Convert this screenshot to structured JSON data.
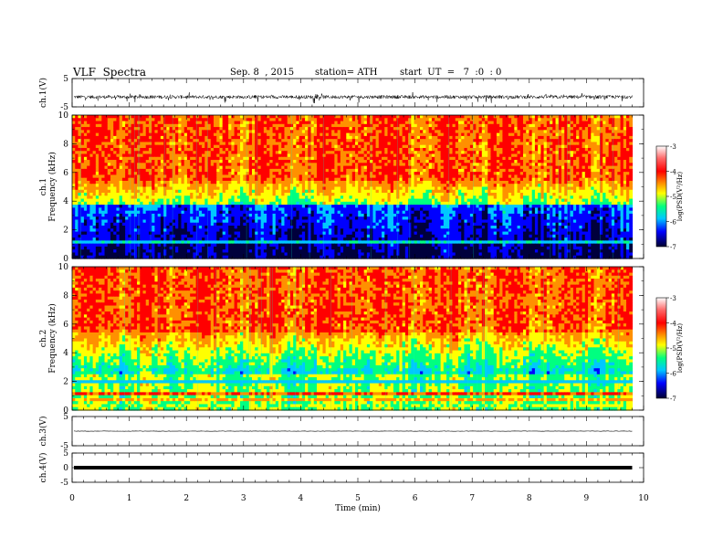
{
  "header": {
    "title": "VLF  Spectra",
    "date": "Sep. 8  , 2015",
    "station": "station= ATH",
    "start": "start  UT  =   7  :0  : 0"
  },
  "chart_data": [
    {
      "type": "line",
      "panel": "ch1-waveform",
      "ylabel": "ch.1(V)",
      "ylim": [
        -5,
        5
      ],
      "y_ticks": [
        "5",
        "-5"
      ],
      "description_level": -1.5,
      "amplitude": 1.2
    },
    {
      "type": "heatmap",
      "panel": "ch1-spectrogram",
      "ylabel_line1": "ch.1",
      "ylabel_line2": "Frequency  (kHz)",
      "ylim": [
        0,
        10
      ],
      "y_ticks": [
        "0",
        "2",
        "4",
        "6",
        "8",
        "10"
      ],
      "colorbar": {
        "label": "log(PSD(V²/Hz)",
        "range": [
          -7,
          -3
        ],
        "ticks": [
          "-3",
          "-4",
          "-5",
          "-6",
          "-7"
        ]
      }
    },
    {
      "type": "heatmap",
      "panel": "ch2-spectrogram",
      "ylabel_line1": "ch.2",
      "ylabel_line2": "Frequency  (kHz)",
      "ylim": [
        0,
        10
      ],
      "y_ticks": [
        "0",
        "2",
        "4",
        "6",
        "8",
        "10"
      ],
      "colorbar": {
        "label": "log(PSD(V²/Hz)",
        "range": [
          -7,
          -3
        ],
        "ticks": [
          "-3",
          "-4",
          "-5",
          "-6",
          "-7"
        ]
      }
    },
    {
      "type": "line",
      "panel": "ch3-waveform",
      "ylabel": "ch.3(V)",
      "ylim": [
        -5,
        5
      ],
      "y_ticks": [
        "5",
        "-5"
      ],
      "level": 0
    },
    {
      "type": "line",
      "panel": "ch4-waveform",
      "ylabel": "ch.4(V)",
      "ylim": [
        -5,
        5
      ],
      "y_ticks": [
        "5",
        "0",
        "-5"
      ],
      "level": 0
    }
  ],
  "x_axis": {
    "label": "Time  (min)",
    "xlim": [
      0,
      10
    ],
    "ticks": [
      "0",
      "1",
      "2",
      "3",
      "4",
      "5",
      "6",
      "7",
      "8",
      "9",
      "10"
    ],
    "data_end": 9.8
  },
  "colors": {
    "axis": "#000000",
    "scale": [
      "#00004a",
      "#0000ff",
      "#00c8ff",
      "#00ff80",
      "#ffff00",
      "#ff8000",
      "#ff0000",
      "#ffffff"
    ]
  }
}
